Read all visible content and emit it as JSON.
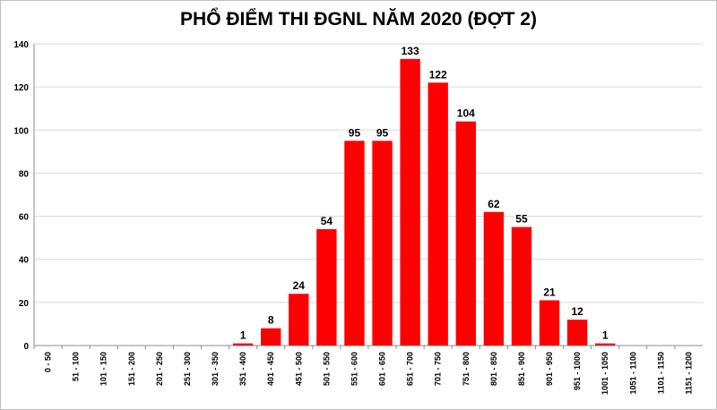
{
  "chart_data": {
    "type": "bar",
    "title": "PHỔ ĐIỂM THI ĐGNL NĂM 2020 (ĐỢT 2)",
    "categories": [
      "0 - 50",
      "51 - 100",
      "101 - 150",
      "151 - 200",
      "201 - 250",
      "251 - 300",
      "301 - 350",
      "351 - 400",
      "401 - 450",
      "451 - 500",
      "501 - 550",
      "551 - 600",
      "601 - 650",
      "651 - 700",
      "701 - 750",
      "751 - 800",
      "801 - 850",
      "851 - 900",
      "901 - 950",
      "951 - 1000",
      "1001 - 1050",
      "1051 - 1100",
      "1101 - 1150",
      "1151 - 1200"
    ],
    "values": [
      0,
      0,
      0,
      0,
      0,
      0,
      0,
      1,
      8,
      24,
      54,
      95,
      95,
      133,
      122,
      104,
      62,
      55,
      21,
      12,
      1,
      0,
      0,
      0
    ],
    "data_labels": [
      "",
      "",
      "",
      "",
      "",
      "",
      "",
      "1",
      "8",
      "24",
      "54",
      "95",
      "95",
      "133",
      "122",
      "104",
      "62",
      "55",
      "21",
      "12",
      "1",
      "",
      "",
      ""
    ],
    "ylim": [
      0,
      140
    ],
    "yticks": [
      0,
      20,
      40,
      60,
      80,
      100,
      120,
      140
    ],
    "grid": true,
    "bar_color": "#ff0000"
  }
}
